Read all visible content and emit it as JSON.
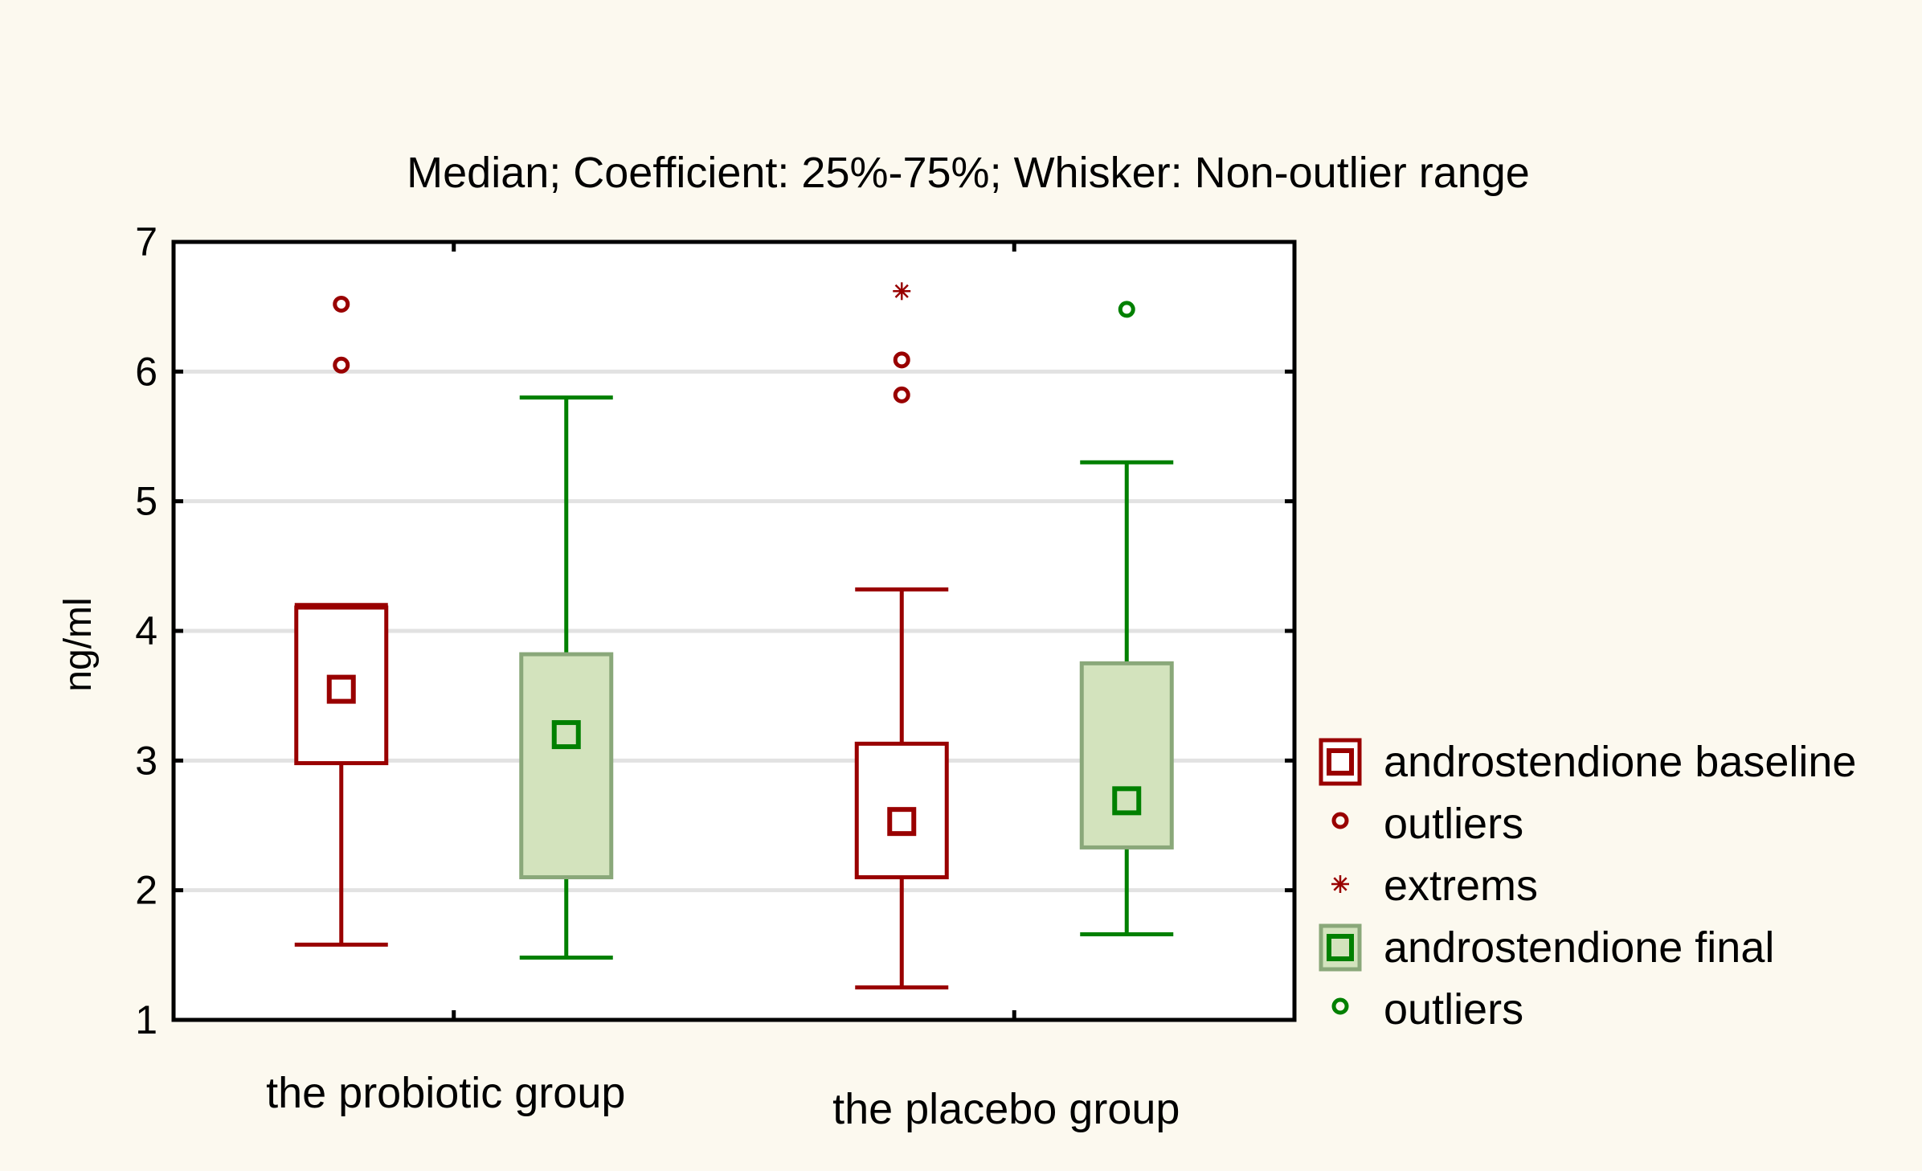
{
  "chart_data": {
    "type": "boxplot",
    "title": "Median; Coefficient: 25%-75%; Whisker: Non-outlier range",
    "xlabel": "",
    "ylabel": "ng/ml",
    "ylim": [
      1,
      7
    ],
    "yticks": [
      1,
      2,
      3,
      4,
      5,
      6,
      7
    ],
    "grid": true,
    "legend_position": "right",
    "background_color": "#fcf9ef",
    "plot_background": "#ffffff",
    "grid_color": "#e2e2e2",
    "groups": [
      {
        "label": "the probiotic group"
      },
      {
        "label": "the placebo group"
      }
    ],
    "series": [
      {
        "name": "androstendione baseline",
        "color": "#990000",
        "fill": "#ffffff",
        "boxes": [
          {
            "group": "the probiotic group",
            "whisker_low": 1.58,
            "q1": 2.98,
            "median": 3.55,
            "q3": 4.18,
            "whisker_high": 4.2,
            "outliers": [
              6.05,
              6.52
            ],
            "extremes": []
          },
          {
            "group": "the placebo group",
            "whisker_low": 1.25,
            "q1": 2.1,
            "median": 2.53,
            "q3": 3.13,
            "whisker_high": 4.32,
            "outliers": [
              5.82,
              6.09
            ],
            "extremes": [
              6.62
            ]
          }
        ]
      },
      {
        "name": "androstendione final",
        "color": "#008000",
        "fill": "#d3e3bd",
        "border": "#8aa87a",
        "boxes": [
          {
            "group": "the probiotic group",
            "whisker_low": 1.48,
            "q1": 2.1,
            "median": 3.2,
            "q3": 3.82,
            "whisker_high": 5.8,
            "outliers": [],
            "extremes": []
          },
          {
            "group": "the placebo group",
            "whisker_low": 1.66,
            "q1": 2.33,
            "median": 2.69,
            "q3": 3.75,
            "whisker_high": 5.3,
            "outliers": [
              6.48
            ],
            "extremes": []
          }
        ]
      }
    ],
    "legend": [
      {
        "label": "androstendione baseline",
        "symbol": "box",
        "series": 0
      },
      {
        "label": "outliers",
        "symbol": "outlier",
        "series": 0
      },
      {
        "label": "extrems",
        "symbol": "extreme",
        "series": 0
      },
      {
        "label": "androstendione final",
        "symbol": "box",
        "series": 1
      },
      {
        "label": "outliers",
        "symbol": "outlier",
        "series": 1
      }
    ]
  }
}
